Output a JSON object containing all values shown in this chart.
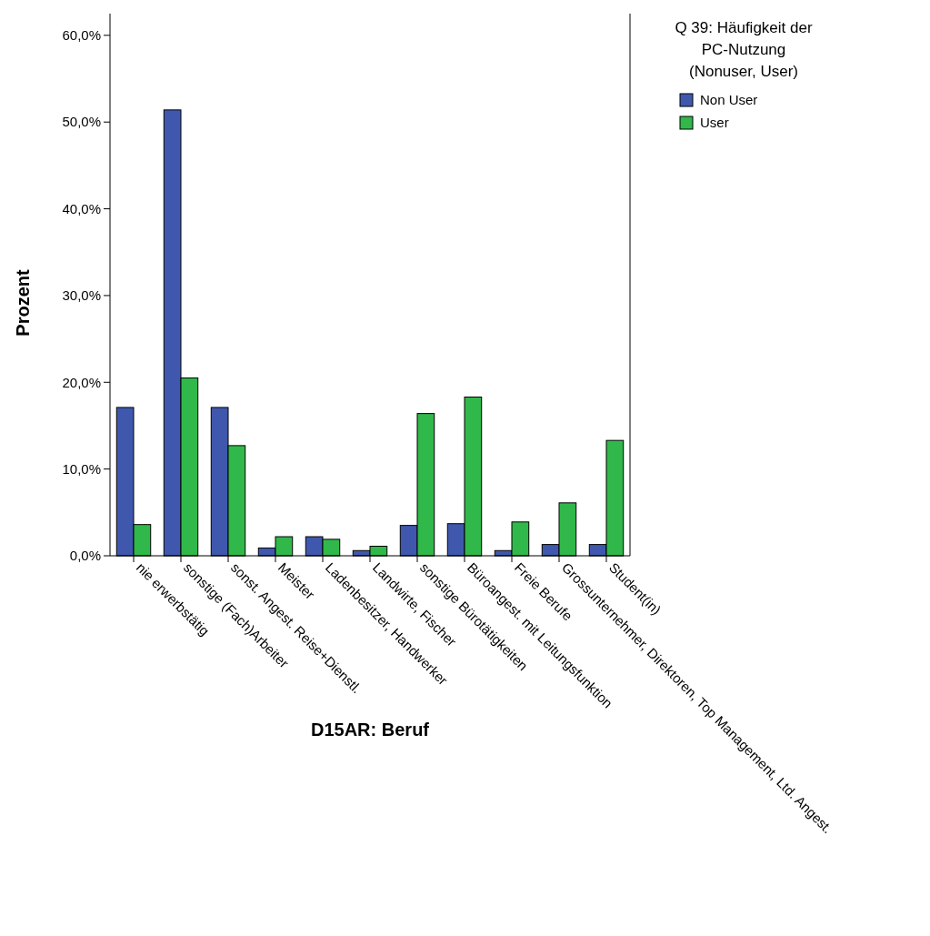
{
  "chart_data": {
    "type": "bar",
    "xlabel": "D15AR: Beruf",
    "ylabel": "Prozent",
    "legend_title": "Q 39: Häufigkeit der\nPC-Nutzung\n(Nonuser, User)",
    "legend": "top right",
    "grid": false,
    "categories": [
      "nie erwerbstätig",
      "sonstige (Fach)Arbeiter",
      "sonst. Angest. Reise+Dienstl.",
      "Meister",
      "Ladenbesitzer, Handwerker",
      "Landwirte, Fischer",
      "sonstige Bürotätigkeiten",
      "Büroangest. mit Leitungsfunktion",
      "Freie Berufe",
      "Grossunternehmer, Direktoren, Top Management, Ltd. Angest.",
      "Student(in)"
    ],
    "series": [
      {
        "name": "Non User",
        "color": "#3f58ad",
        "values": [
          17.1,
          51.4,
          17.1,
          0.9,
          2.2,
          0.6,
          3.5,
          3.7,
          0.6,
          1.3,
          1.3
        ]
      },
      {
        "name": "User",
        "color": "#31b84a",
        "values": [
          3.6,
          20.5,
          12.7,
          2.2,
          1.9,
          1.1,
          16.4,
          18.3,
          3.9,
          6.1,
          13.3
        ]
      }
    ],
    "ylim": [
      0,
      62.5
    ],
    "yticks": [
      {
        "value": 0,
        "label": "0,0%"
      },
      {
        "value": 10,
        "label": "10,0%"
      },
      {
        "value": 20,
        "label": "20,0%"
      },
      {
        "value": 30,
        "label": "30,0%"
      },
      {
        "value": 40,
        "label": "40,0%"
      },
      {
        "value": 50,
        "label": "50,0%"
      },
      {
        "value": 60,
        "label": "60,0%"
      }
    ]
  }
}
